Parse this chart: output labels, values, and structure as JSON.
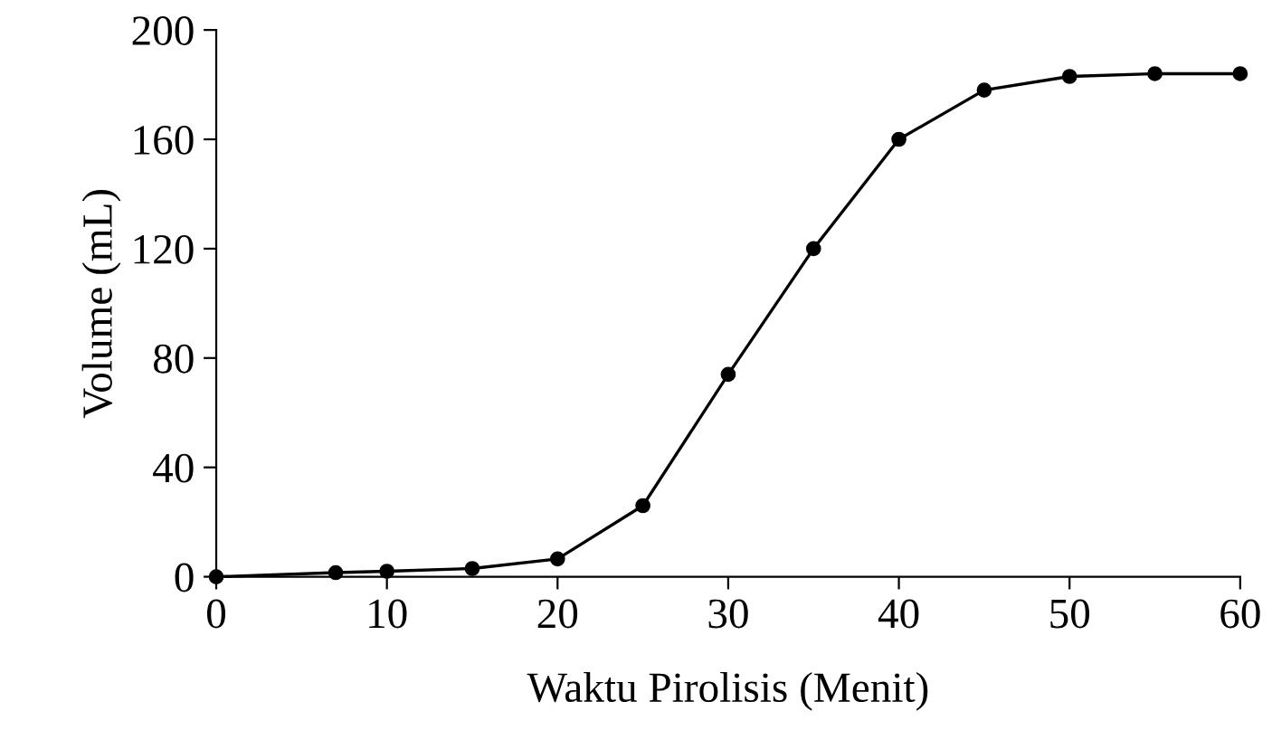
{
  "chart_data": {
    "type": "line",
    "xlabel": "Waktu Pirolisis (Menit)",
    "ylabel": "Volume (mL)",
    "x": [
      0,
      7,
      10,
      15,
      20,
      25,
      30,
      35,
      40,
      45,
      50,
      55,
      60
    ],
    "series": [
      {
        "color": "#000000",
        "values": [
          0,
          1.5,
          2,
          3,
          6.5,
          26,
          74,
          120,
          160,
          178,
          183,
          184,
          184
        ]
      }
    ],
    "xlim": [
      0,
      60
    ],
    "xticks": [
      0,
      10,
      20,
      30,
      40,
      50,
      60
    ],
    "ylim": [
      0,
      200
    ],
    "yticks": [
      0,
      40,
      80,
      120,
      160,
      200
    ],
    "grid": false,
    "legend": false,
    "marker": "circle",
    "line_style": "solid"
  }
}
